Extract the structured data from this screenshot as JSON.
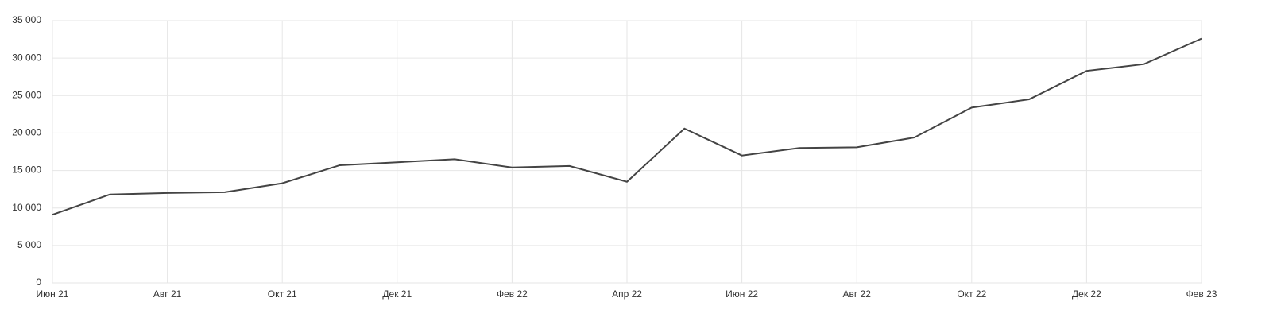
{
  "chart_data": {
    "type": "line",
    "categories": [
      "Июн 21",
      null,
      "Авг 21",
      null,
      "Окт 21",
      null,
      "Дек 21",
      null,
      "Фев 22",
      null,
      "Апр 22",
      null,
      "Июн 22",
      null,
      "Авг 22",
      null,
      "Окт 22",
      null,
      "Дек 22",
      null,
      "Фев 23"
    ],
    "series": [
      {
        "color": "#444444",
        "values": [
          9100,
          11800,
          12000,
          12100,
          13300,
          15700,
          16100,
          16500,
          15400,
          15600,
          13500,
          20600,
          17000,
          18000,
          18100,
          19400,
          23400,
          24500,
          28300,
          29200,
          32600
        ]
      }
    ],
    "ylim": [
      0,
      35000
    ],
    "yticks": [
      0,
      {
        "value": 5000,
        "label": "5 000"
      },
      {
        "value": 10000,
        "label": "10 000"
      },
      {
        "value": 15000,
        "label": "15 000"
      },
      {
        "value": 20000,
        "label": "20 000"
      },
      {
        "value": 25000,
        "label": "25 000"
      },
      {
        "value": 30000,
        "label": "30 000"
      },
      {
        "value": 35000,
        "label": "35 000"
      }
    ],
    "grid": true
  }
}
